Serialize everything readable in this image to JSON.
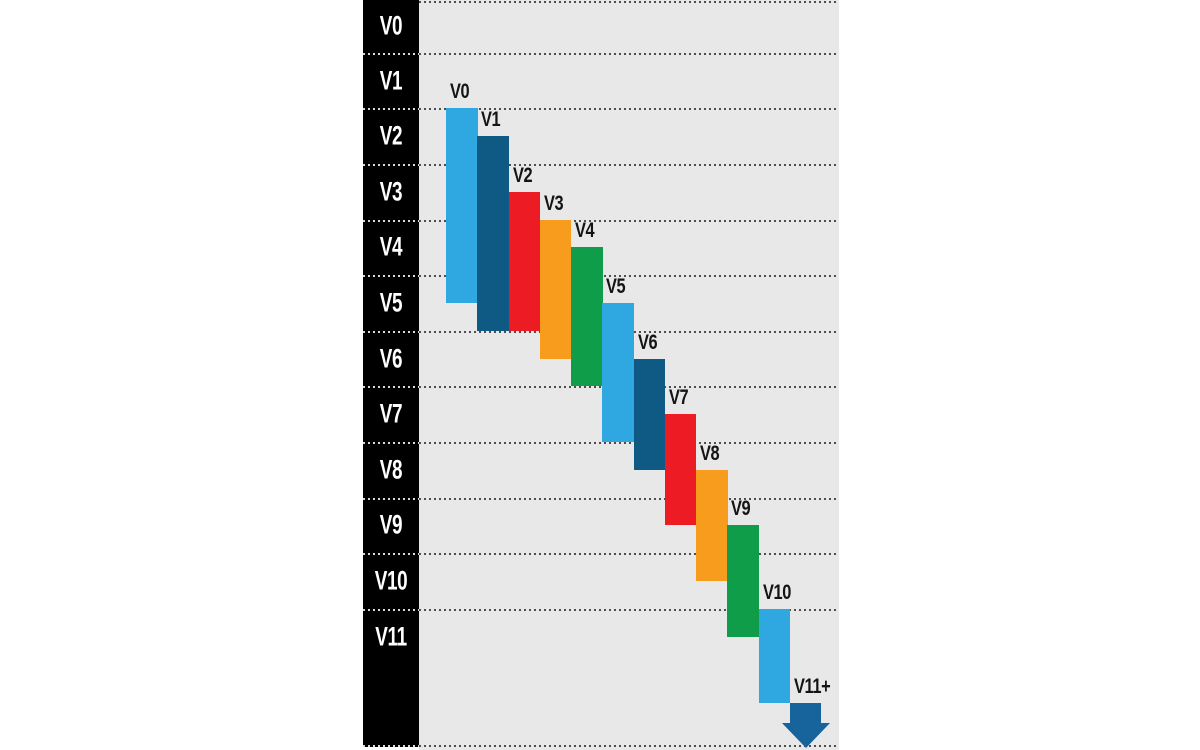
{
  "chart_data": {
    "type": "bar",
    "subtype": "vertical-floating-range-cascade",
    "title": "",
    "y_axis": {
      "position": "left",
      "direction": "top-to-bottom",
      "labels": [
        "V0",
        "V1",
        "V2",
        "V3",
        "V4",
        "V5",
        "V6",
        "V7",
        "V8",
        "V9",
        "V10",
        "V11"
      ]
    },
    "unit_note": "start/end are positions on the left V-scale: integer n = gridline at top of row Vn, n+0.5 = middle of row Vn",
    "bars": [
      {
        "label": "V0",
        "color": "light_blue",
        "start": 2.0,
        "end": 5.5,
        "shape": "bar"
      },
      {
        "label": "V1",
        "color": "dark_blue",
        "start": 2.5,
        "end": 6.0,
        "shape": "bar"
      },
      {
        "label": "V2",
        "color": "red",
        "start": 3.5,
        "end": 6.0,
        "shape": "bar"
      },
      {
        "label": "V3",
        "color": "orange",
        "start": 4.0,
        "end": 6.5,
        "shape": "bar"
      },
      {
        "label": "V4",
        "color": "green",
        "start": 4.5,
        "end": 7.0,
        "shape": "bar"
      },
      {
        "label": "V5",
        "color": "light_blue",
        "start": 5.5,
        "end": 8.0,
        "shape": "bar"
      },
      {
        "label": "V6",
        "color": "dark_blue",
        "start": 6.5,
        "end": 8.5,
        "shape": "bar"
      },
      {
        "label": "V7",
        "color": "red",
        "start": 7.5,
        "end": 9.5,
        "shape": "bar"
      },
      {
        "label": "V8",
        "color": "orange",
        "start": 8.5,
        "end": 10.5,
        "shape": "bar"
      },
      {
        "label": "V9",
        "color": "green",
        "start": 9.5,
        "end": 11.5,
        "shape": "bar"
      },
      {
        "label": "V10",
        "color": "light_blue",
        "start": 11.0,
        "end": 12.7,
        "shape": "bar"
      },
      {
        "label": "V11+",
        "color": "arrow_blue",
        "start": 12.7,
        "end": 13.5,
        "shape": "arrow"
      }
    ],
    "palette": {
      "light_blue": "#2FA8E1",
      "dark_blue": "#0F5A84",
      "red": "#EC1B24",
      "orange": "#F89C1E",
      "green": "#0F9D49",
      "arrow_blue": "#17639B"
    },
    "background": {
      "page": "#FFFFFF",
      "plot": "#E8E8E8",
      "axis": "#000000"
    },
    "gridline": {
      "style": "dotted",
      "color_on_plot": "#4D4D4D",
      "color_on_axis": "#FFFFFF"
    },
    "text_colors": {
      "axis_labels": "#FFFFFF",
      "bar_labels": "#141414"
    },
    "legend": "none",
    "grid": "horizontal dotted lines at every row boundary, plus top and bottom edges"
  }
}
